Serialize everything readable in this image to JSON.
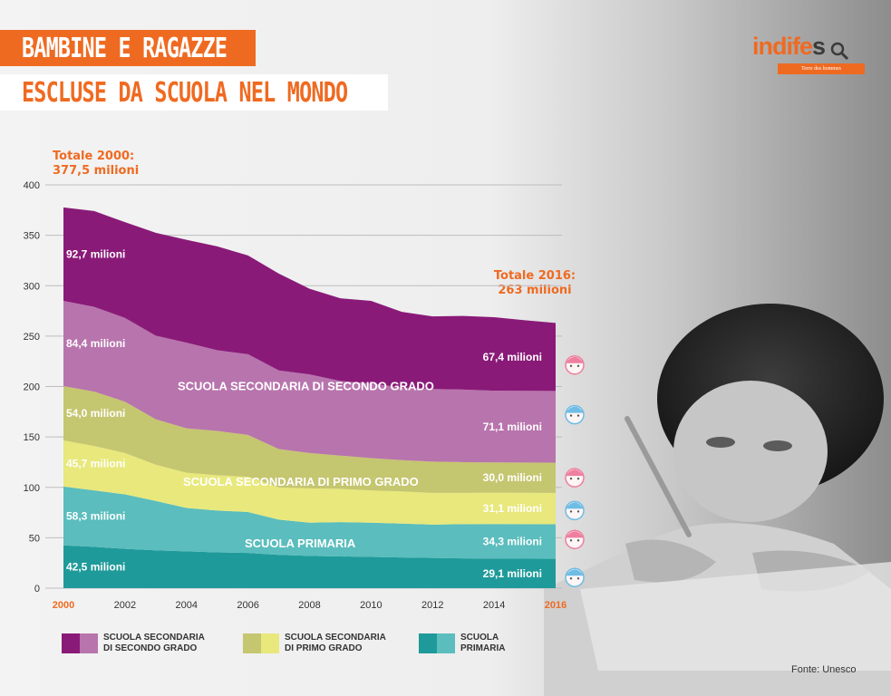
{
  "title": {
    "line1": "BAMBINE E RAGAZZE",
    "line2": "ESCLUSE DA SCUOLA NEL MONDO"
  },
  "logo": {
    "word_orange": "indife",
    "word_dark": "s",
    "sub": "Terre des hommes"
  },
  "totals": {
    "start": {
      "label": "Totale 2000:",
      "value": "377,5 milioni"
    },
    "end": {
      "label": "Totale 2016:",
      "value": "263 milioni"
    }
  },
  "colors": {
    "sec2_girls": "#8a1a78",
    "sec2_boys": "#b874ad",
    "sec1_girls": "#c5c670",
    "sec1_boys": "#e8e87c",
    "prim_girls": "#1f9a9a",
    "prim_boys": "#5bbdbd",
    "accent": "#ef6a21",
    "girl_icon": "#ee7f9f",
    "boy_icon": "#6fbde4"
  },
  "chart_data": {
    "type": "area",
    "stacked": true,
    "x": [
      2000,
      2001,
      2002,
      2003,
      2004,
      2005,
      2006,
      2007,
      2008,
      2009,
      2010,
      2011,
      2012,
      2013,
      2014,
      2015,
      2016
    ],
    "x_ticks": [
      "2000",
      "2002",
      "2004",
      "2006",
      "2008",
      "2010",
      "2012",
      "2014",
      "2016"
    ],
    "y_ticks": [
      "0",
      "50",
      "100",
      "150",
      "200",
      "250",
      "300",
      "350",
      "400"
    ],
    "ylim": [
      0,
      400
    ],
    "grid": true,
    "legend_position": "bottom",
    "series": [
      {
        "key": "prim_girls",
        "values": [
          42.5,
          41,
          39,
          37.5,
          36.5,
          35.5,
          35,
          33,
          32,
          31.5,
          31,
          30.5,
          30,
          29.5,
          29.3,
          29.2,
          29.1
        ]
      },
      {
        "key": "prim_boys",
        "values": [
          58.3,
          56,
          54,
          49,
          43,
          41.5,
          40.5,
          35,
          33,
          34,
          34,
          33.5,
          33,
          34,
          34.3,
          34.3,
          34.3
        ]
      },
      {
        "key": "sec1_boys",
        "values": [
          45.7,
          44,
          41,
          36,
          35,
          35,
          35,
          32,
          34,
          33,
          32,
          32,
          31.5,
          31,
          31.1,
          31.1,
          31.1
        ]
      },
      {
        "key": "sec1_girls",
        "values": [
          54.0,
          54,
          51,
          45,
          44,
          44,
          41.5,
          38,
          35,
          33,
          32,
          31,
          31,
          30.5,
          30,
          30,
          30.0
        ]
      },
      {
        "key": "sec2_boys",
        "values": [
          84.4,
          84,
          83,
          83,
          85,
          80,
          80,
          78,
          78,
          74,
          74,
          72,
          72,
          72,
          71.1,
          71.1,
          71.1
        ]
      },
      {
        "key": "sec2_girls",
        "values": [
          92.7,
          95,
          95,
          102,
          102,
          103,
          98,
          96,
          85,
          82,
          82,
          75,
          72,
          73,
          73,
          70,
          67.4
        ]
      }
    ],
    "labels_start": [
      "42,5 milioni",
      "58,3 milioni",
      "45,7 milioni",
      "54,0 milioni",
      "84,4 milioni",
      "92,7 milioni"
    ],
    "labels_end": [
      "29,1 milioni",
      "34,3 milioni",
      "31,1 milioni",
      "30,0 milioni",
      "71,1 milioni",
      "67,4 milioni"
    ],
    "band_labels": {
      "primary": "SCUOLA PRIMARIA",
      "lower_secondary": "SCUOLA SECONDARIA DI PRIMO GRADO",
      "upper_secondary": "SCUOLA SECONDARIA DI SECONDO GRADO"
    },
    "legend": [
      {
        "line1": "SCUOLA SECONDARIA",
        "line2": "DI SECONDO GRADO",
        "c1": "sec2_girls",
        "c2": "sec2_boys"
      },
      {
        "line1": "SCUOLA SECONDARIA",
        "line2": "DI PRIMO GRADO",
        "c1": "sec1_girls",
        "c2": "sec1_boys"
      },
      {
        "line1": "SCUOLA",
        "line2": "PRIMARIA",
        "c1": "prim_girls",
        "c2": "prim_boys"
      }
    ]
  },
  "source": "Fonte: Unesco"
}
